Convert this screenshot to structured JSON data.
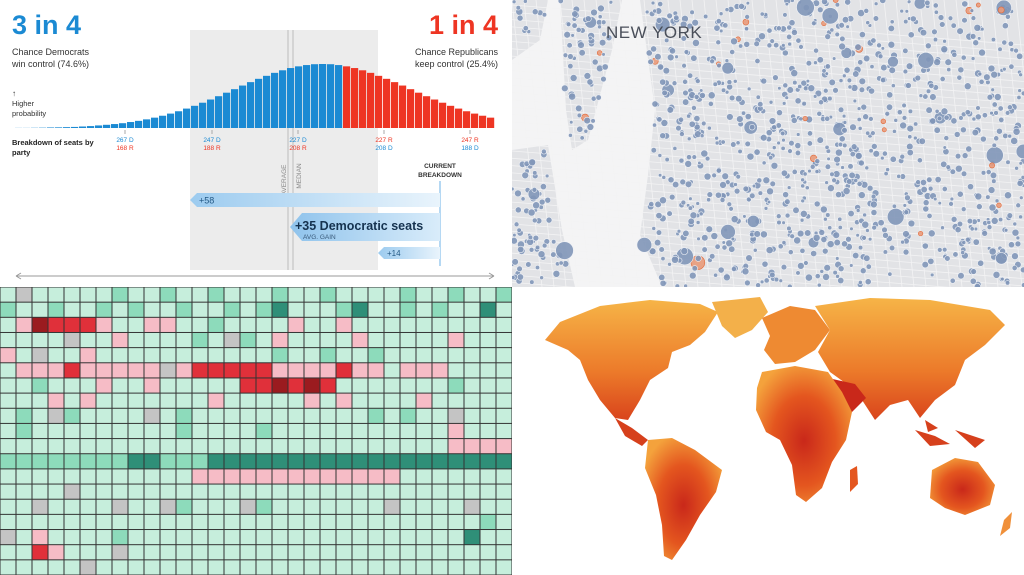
{
  "forecast": {
    "dem": {
      "headline": "3 in 4",
      "caption": [
        "Chance Democrats",
        "win control (74.6%)"
      ]
    },
    "rep": {
      "headline": "1 in 4",
      "caption": [
        "Chance Republicans",
        "keep control (25.4%)"
      ]
    },
    "y_label": [
      "↑",
      "Higher",
      "probability"
    ],
    "breakdown_label": [
      "Breakdown of seats by",
      "party"
    ],
    "histogram": {
      "ylim": [
        0,
        60
      ],
      "series": [
        {
          "color": "#1b8ad3",
          "values": [
            0.1,
            0.1,
            0.2,
            0.3,
            0.5,
            0.6,
            0.8,
            1,
            1.4,
            1.8,
            2.4,
            3,
            3.7,
            4.5,
            5.6,
            6.7,
            8.1,
            9.7,
            11.5,
            13.5,
            15.7,
            18.2,
            20.8,
            23.7,
            26.7,
            29.8,
            33.1,
            36.4,
            39.8,
            43,
            46.1,
            48.9,
            51.7,
            54.1,
            56.2,
            57.8,
            59,
            59.8,
            60,
            59.8,
            59
          ]
        },
        {
          "color": "#ee3523",
          "values": [
            57.8,
            56.2,
            54.1,
            51.7,
            48.9,
            46.1,
            43,
            39.8,
            36.4,
            33.1,
            29.8,
            26.7,
            23.7,
            20.8,
            18.2,
            15.7,
            13.5,
            11.5,
            9.7
          ]
        }
      ]
    },
    "seat_ticks": [
      [
        "267 D",
        "168 R"
      ],
      [
        "247 D",
        "188 R"
      ],
      [
        "227 D",
        "208 R"
      ],
      [
        "227 R",
        "208 D"
      ],
      [
        "247 R",
        "188 D"
      ]
    ],
    "average_label": "AVERAGE",
    "median_label": "MEDIAN",
    "current_label": [
      "CURRENT",
      "BREAKDOWN"
    ],
    "gains": [
      {
        "label": "+58"
      },
      {
        "label": "+35 Democratic seats",
        "sublabel": "AVG. GAIN"
      },
      {
        "label": "+14"
      }
    ]
  },
  "map": {
    "label": "NEW YORK"
  },
  "heatmap": {
    "palette": [
      "#9b1b1f",
      "#e0303a",
      "#f6bcc6",
      "#c4c4c4",
      "#c6eedc",
      "#8ddbbb",
      "#2f8f78"
    ],
    "rows": [
      [
        1,
        0,
        1,
        1,
        1,
        1,
        1,
        2,
        1,
        1,
        2,
        1,
        1,
        2,
        1,
        1,
        1,
        2,
        1,
        1,
        2,
        1,
        1,
        1,
        1,
        2,
        1,
        1,
        2,
        1,
        1,
        2
      ],
      [
        2,
        1,
        1,
        2,
        1,
        1,
        2,
        1,
        2,
        1,
        1,
        2,
        1,
        1,
        2,
        1,
        2,
        3,
        1,
        1,
        1,
        2,
        3,
        1,
        1,
        2,
        1,
        2,
        1,
        1,
        3,
        1
      ],
      [
        1,
        -1,
        -3,
        -2,
        -2,
        -2,
        -1,
        1,
        1,
        -1,
        -1,
        1,
        1,
        2,
        1,
        1,
        1,
        1,
        -1,
        1,
        1,
        -1,
        1,
        1,
        1,
        1,
        1,
        1,
        1,
        1,
        1,
        1
      ],
      [
        1,
        1,
        1,
        1,
        0,
        1,
        1,
        -1,
        1,
        1,
        1,
        1,
        2,
        1,
        0,
        2,
        1,
        -1,
        1,
        1,
        1,
        1,
        -1,
        1,
        1,
        1,
        1,
        1,
        -1,
        1,
        1,
        1
      ],
      [
        -1,
        1,
        0,
        1,
        1,
        -1,
        1,
        1,
        1,
        1,
        1,
        1,
        1,
        1,
        1,
        1,
        1,
        2,
        1,
        1,
        2,
        1,
        1,
        2,
        1,
        1,
        1,
        1,
        1,
        1,
        1,
        1
      ],
      [
        1,
        -1,
        -1,
        -1,
        -2,
        -1,
        -1,
        -1,
        -1,
        -1,
        0,
        -1,
        -2,
        -2,
        -2,
        -2,
        -2,
        -1,
        -1,
        -1,
        -1,
        -2,
        -1,
        -1,
        1,
        -1,
        -1,
        -1,
        1,
        1,
        1,
        1
      ],
      [
        1,
        1,
        2,
        1,
        1,
        1,
        -1,
        1,
        1,
        -1,
        1,
        1,
        1,
        1,
        1,
        -2,
        -2,
        -3,
        -2,
        -3,
        -2,
        1,
        1,
        1,
        1,
        1,
        1,
        1,
        2,
        1,
        1,
        1
      ],
      [
        1,
        1,
        1,
        -1,
        1,
        -1,
        1,
        1,
        1,
        1,
        1,
        1,
        1,
        -1,
        1,
        1,
        1,
        1,
        1,
        -1,
        1,
        -1,
        1,
        1,
        1,
        1,
        -1,
        1,
        1,
        1,
        1,
        1
      ],
      [
        1,
        2,
        1,
        0,
        2,
        1,
        1,
        1,
        1,
        0,
        1,
        2,
        1,
        1,
        1,
        1,
        1,
        1,
        1,
        1,
        1,
        1,
        1,
        2,
        1,
        2,
        1,
        1,
        0,
        1,
        1,
        1
      ],
      [
        1,
        2,
        1,
        1,
        1,
        1,
        1,
        1,
        1,
        1,
        1,
        2,
        1,
        1,
        1,
        1,
        2,
        1,
        1,
        1,
        1,
        1,
        1,
        1,
        1,
        1,
        1,
        1,
        -1,
        1,
        1,
        1
      ],
      [
        1,
        1,
        1,
        1,
        1,
        1,
        1,
        1,
        1,
        1,
        1,
        1,
        1,
        1,
        1,
        1,
        1,
        1,
        1,
        1,
        1,
        1,
        1,
        1,
        1,
        1,
        1,
        1,
        -1,
        -1,
        -1,
        -1
      ],
      [
        2,
        2,
        2,
        2,
        2,
        2,
        2,
        2,
        3,
        3,
        2,
        2,
        2,
        3,
        3,
        3,
        3,
        3,
        3,
        3,
        3,
        3,
        3,
        3,
        3,
        3,
        3,
        3,
        3,
        3,
        3,
        3
      ],
      [
        1,
        1,
        1,
        1,
        1,
        1,
        1,
        1,
        1,
        1,
        1,
        1,
        -1,
        -1,
        -1,
        -1,
        -1,
        -1,
        -1,
        -1,
        -1,
        -1,
        -1,
        -1,
        -1,
        1,
        1,
        1,
        1,
        1,
        1,
        1
      ],
      [
        1,
        1,
        1,
        1,
        0,
        1,
        1,
        1,
        1,
        1,
        1,
        1,
        1,
        1,
        1,
        1,
        1,
        1,
        1,
        1,
        1,
        1,
        1,
        1,
        1,
        1,
        1,
        1,
        1,
        1,
        1,
        1
      ],
      [
        1,
        1,
        0,
        1,
        1,
        1,
        1,
        0,
        1,
        1,
        0,
        2,
        1,
        1,
        1,
        0,
        2,
        1,
        1,
        1,
        1,
        1,
        1,
        1,
        0,
        1,
        1,
        1,
        1,
        0,
        1,
        1
      ],
      [
        1,
        1,
        1,
        1,
        1,
        1,
        1,
        1,
        1,
        1,
        1,
        1,
        1,
        1,
        1,
        1,
        1,
        1,
        1,
        1,
        1,
        1,
        1,
        1,
        1,
        1,
        1,
        1,
        1,
        1,
        2,
        1
      ],
      [
        0,
        1,
        -1,
        1,
        1,
        1,
        1,
        2,
        1,
        1,
        1,
        1,
        1,
        1,
        1,
        1,
        1,
        1,
        1,
        1,
        1,
        1,
        1,
        1,
        1,
        1,
        1,
        1,
        1,
        3,
        1,
        1
      ],
      [
        1,
        1,
        -2,
        -1,
        1,
        1,
        1,
        0,
        1,
        1,
        1,
        1,
        1,
        1,
        1,
        1,
        1,
        1,
        1,
        1,
        1,
        1,
        1,
        1,
        1,
        1,
        1,
        1,
        1,
        1,
        1,
        1
      ],
      [
        1,
        1,
        1,
        1,
        1,
        0,
        1,
        1,
        1,
        1,
        1,
        1,
        1,
        1,
        1,
        1,
        1,
        1,
        1,
        1,
        1,
        1,
        1,
        1,
        1,
        1,
        1,
        1,
        1,
        1,
        1,
        1
      ]
    ]
  }
}
